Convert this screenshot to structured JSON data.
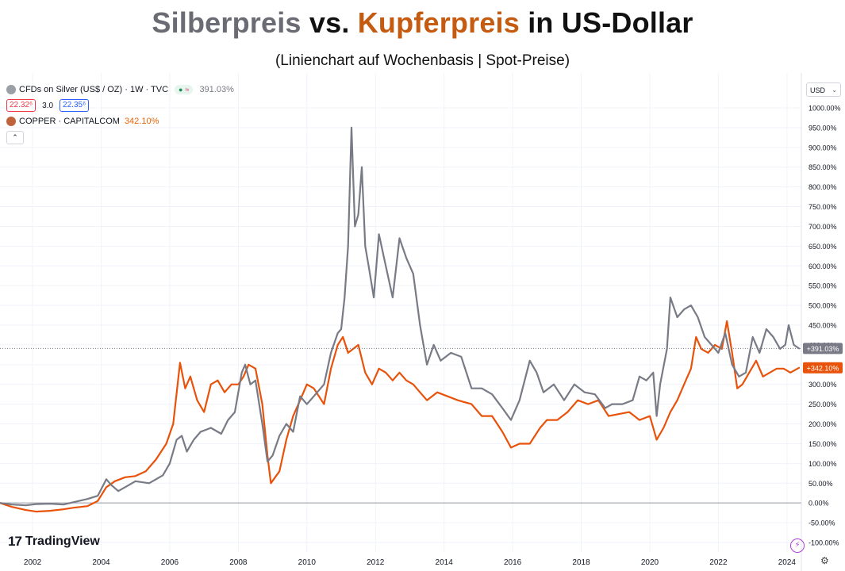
{
  "header": {
    "title_silver": "Silberpreis",
    "title_mid": "vs.",
    "title_copper": "Kupferpreis",
    "title_end": "in US-Dollar",
    "subtitle": "(Linienchart auf Wochenbasis | Spot-Preise)"
  },
  "legend": {
    "silver_label": "CFDs on Silver (US$ / OZ) · 1W · TVC",
    "silver_pct": "391.03%",
    "pill_icon": "●",
    "pill_alt": "≈",
    "bid": "22.32⁶",
    "spread": "3.0",
    "ask": "22.35⁶",
    "copper_label": "COPPER · CAPITALCOM",
    "copper_pct": "342.10%",
    "collapse": "⌃"
  },
  "toolbar": {
    "currency": "USD",
    "currency_chevron": "⌄"
  },
  "brand": {
    "logo": "17",
    "name": "TradingView"
  },
  "icons": {
    "bolt": "⚡",
    "gear": "⚙"
  },
  "colors": {
    "silver": "#787b86",
    "copper": "#e8520a",
    "grid": "#f0f3fa"
  },
  "chart_data": {
    "type": "line",
    "title": "Silberpreis vs. Kupferpreis in US-Dollar",
    "subtitle": "(Linienchart auf Wochenbasis | Spot-Preise)",
    "ylim": [
      -100,
      1000
    ],
    "xlim": [
      2001.05,
      2024.35
    ],
    "grid": true,
    "legend": "top-left",
    "y_ticks": [
      "1000.00%",
      "950.00%",
      "900.00%",
      "850.00%",
      "800.00%",
      "750.00%",
      "700.00%",
      "650.00%",
      "600.00%",
      "550.00%",
      "500.00%",
      "450.00%",
      "400.00%",
      "350.00%",
      "300.00%",
      "250.00%",
      "200.00%",
      "150.00%",
      "100.00%",
      "50.00%",
      "0.00%",
      "-50.00%",
      "-100.00%"
    ],
    "x_ticks": [
      "2002",
      "2004",
      "2006",
      "2008",
      "2010",
      "2012",
      "2014",
      "2016",
      "2018",
      "2020",
      "2022",
      "2024"
    ],
    "last_labels": {
      "silver": "+391.03%",
      "copper": "+342.10%"
    },
    "series": [
      {
        "name": "CFDs on Silver (US$ / OZ)",
        "color": "#787b86",
        "points": [
          [
            2001.05,
            0
          ],
          [
            2001.4,
            -4
          ],
          [
            2001.8,
            -6
          ],
          [
            2002.1,
            -3
          ],
          [
            2002.5,
            -2
          ],
          [
            2002.9,
            -4
          ],
          [
            2003.2,
            2
          ],
          [
            2003.6,
            10
          ],
          [
            2003.9,
            18
          ],
          [
            2004.15,
            60
          ],
          [
            2004.3,
            45
          ],
          [
            2004.5,
            30
          ],
          [
            2004.8,
            45
          ],
          [
            2005.0,
            55
          ],
          [
            2005.4,
            50
          ],
          [
            2005.8,
            70
          ],
          [
            2006.0,
            100
          ],
          [
            2006.2,
            160
          ],
          [
            2006.35,
            170
          ],
          [
            2006.5,
            130
          ],
          [
            2006.7,
            160
          ],
          [
            2006.9,
            180
          ],
          [
            2007.2,
            190
          ],
          [
            2007.5,
            175
          ],
          [
            2007.7,
            210
          ],
          [
            2007.9,
            230
          ],
          [
            2008.1,
            330
          ],
          [
            2008.2,
            350
          ],
          [
            2008.35,
            300
          ],
          [
            2008.5,
            310
          ],
          [
            2008.7,
            200
          ],
          [
            2008.85,
            105
          ],
          [
            2009.0,
            120
          ],
          [
            2009.2,
            170
          ],
          [
            2009.4,
            200
          ],
          [
            2009.6,
            180
          ],
          [
            2009.8,
            270
          ],
          [
            2010.0,
            250
          ],
          [
            2010.2,
            270
          ],
          [
            2010.5,
            300
          ],
          [
            2010.7,
            380
          ],
          [
            2010.9,
            430
          ],
          [
            2011.0,
            440
          ],
          [
            2011.1,
            520
          ],
          [
            2011.2,
            650
          ],
          [
            2011.3,
            950
          ],
          [
            2011.4,
            700
          ],
          [
            2011.5,
            730
          ],
          [
            2011.6,
            850
          ],
          [
            2011.7,
            650
          ],
          [
            2011.8,
            600
          ],
          [
            2011.95,
            520
          ],
          [
            2012.1,
            680
          ],
          [
            2012.3,
            600
          ],
          [
            2012.5,
            520
          ],
          [
            2012.7,
            670
          ],
          [
            2012.9,
            620
          ],
          [
            2013.1,
            580
          ],
          [
            2013.3,
            450
          ],
          [
            2013.5,
            350
          ],
          [
            2013.7,
            400
          ],
          [
            2013.9,
            360
          ],
          [
            2014.2,
            380
          ],
          [
            2014.5,
            370
          ],
          [
            2014.8,
            290
          ],
          [
            2015.1,
            290
          ],
          [
            2015.4,
            275
          ],
          [
            2015.7,
            240
          ],
          [
            2015.95,
            210
          ],
          [
            2016.2,
            260
          ],
          [
            2016.5,
            360
          ],
          [
            2016.7,
            330
          ],
          [
            2016.9,
            280
          ],
          [
            2017.2,
            300
          ],
          [
            2017.5,
            260
          ],
          [
            2017.8,
            300
          ],
          [
            2018.1,
            280
          ],
          [
            2018.4,
            275
          ],
          [
            2018.7,
            240
          ],
          [
            2018.9,
            250
          ],
          [
            2019.2,
            250
          ],
          [
            2019.5,
            260
          ],
          [
            2019.7,
            320
          ],
          [
            2019.9,
            310
          ],
          [
            2020.1,
            330
          ],
          [
            2020.2,
            220
          ],
          [
            2020.3,
            300
          ],
          [
            2020.5,
            390
          ],
          [
            2020.6,
            520
          ],
          [
            2020.8,
            470
          ],
          [
            2021.0,
            490
          ],
          [
            2021.2,
            500
          ],
          [
            2021.4,
            470
          ],
          [
            2021.6,
            420
          ],
          [
            2021.8,
            400
          ],
          [
            2022.0,
            380
          ],
          [
            2022.2,
            430
          ],
          [
            2022.4,
            350
          ],
          [
            2022.6,
            320
          ],
          [
            2022.8,
            330
          ],
          [
            2023.0,
            420
          ],
          [
            2023.2,
            380
          ],
          [
            2023.4,
            440
          ],
          [
            2023.6,
            420
          ],
          [
            2023.8,
            390
          ],
          [
            2023.95,
            400
          ],
          [
            2024.05,
            450
          ],
          [
            2024.2,
            400
          ],
          [
            2024.35,
            391
          ]
        ]
      },
      {
        "name": "COPPER · CAPITALCOM",
        "color": "#e8520a",
        "points": [
          [
            2001.05,
            0
          ],
          [
            2001.4,
            -10
          ],
          [
            2001.8,
            -18
          ],
          [
            2002.1,
            -22
          ],
          [
            2002.5,
            -20
          ],
          [
            2002.9,
            -16
          ],
          [
            2003.2,
            -12
          ],
          [
            2003.6,
            -8
          ],
          [
            2003.9,
            5
          ],
          [
            2004.15,
            40
          ],
          [
            2004.4,
            55
          ],
          [
            2004.7,
            65
          ],
          [
            2005.0,
            68
          ],
          [
            2005.3,
            80
          ],
          [
            2005.6,
            110
          ],
          [
            2005.9,
            150
          ],
          [
            2006.1,
            200
          ],
          [
            2006.3,
            355
          ],
          [
            2006.45,
            290
          ],
          [
            2006.6,
            320
          ],
          [
            2006.8,
            260
          ],
          [
            2007.0,
            230
          ],
          [
            2007.2,
            300
          ],
          [
            2007.4,
            310
          ],
          [
            2007.6,
            280
          ],
          [
            2007.8,
            300
          ],
          [
            2008.0,
            300
          ],
          [
            2008.15,
            320
          ],
          [
            2008.3,
            350
          ],
          [
            2008.5,
            340
          ],
          [
            2008.7,
            250
          ],
          [
            2008.85,
            120
          ],
          [
            2008.95,
            50
          ],
          [
            2009.2,
            80
          ],
          [
            2009.4,
            160
          ],
          [
            2009.6,
            220
          ],
          [
            2009.8,
            260
          ],
          [
            2010.0,
            300
          ],
          [
            2010.2,
            290
          ],
          [
            2010.5,
            250
          ],
          [
            2010.7,
            340
          ],
          [
            2010.9,
            400
          ],
          [
            2011.05,
            420
          ],
          [
            2011.2,
            380
          ],
          [
            2011.5,
            400
          ],
          [
            2011.7,
            330
          ],
          [
            2011.9,
            300
          ],
          [
            2012.1,
            340
          ],
          [
            2012.3,
            330
          ],
          [
            2012.5,
            310
          ],
          [
            2012.7,
            330
          ],
          [
            2012.9,
            310
          ],
          [
            2013.1,
            300
          ],
          [
            2013.3,
            280
          ],
          [
            2013.5,
            260
          ],
          [
            2013.8,
            280
          ],
          [
            2014.1,
            270
          ],
          [
            2014.4,
            260
          ],
          [
            2014.8,
            250
          ],
          [
            2015.1,
            220
          ],
          [
            2015.4,
            220
          ],
          [
            2015.7,
            180
          ],
          [
            2015.95,
            140
          ],
          [
            2016.2,
            150
          ],
          [
            2016.5,
            150
          ],
          [
            2016.8,
            190
          ],
          [
            2017.0,
            210
          ],
          [
            2017.3,
            210
          ],
          [
            2017.6,
            230
          ],
          [
            2017.9,
            260
          ],
          [
            2018.2,
            250
          ],
          [
            2018.5,
            260
          ],
          [
            2018.8,
            220
          ],
          [
            2019.1,
            225
          ],
          [
            2019.4,
            230
          ],
          [
            2019.7,
            210
          ],
          [
            2020.0,
            220
          ],
          [
            2020.2,
            160
          ],
          [
            2020.4,
            190
          ],
          [
            2020.6,
            230
          ],
          [
            2020.8,
            260
          ],
          [
            2021.0,
            300
          ],
          [
            2021.2,
            340
          ],
          [
            2021.35,
            420
          ],
          [
            2021.5,
            390
          ],
          [
            2021.7,
            380
          ],
          [
            2021.9,
            400
          ],
          [
            2022.1,
            390
          ],
          [
            2022.25,
            460
          ],
          [
            2022.4,
            380
          ],
          [
            2022.55,
            290
          ],
          [
            2022.7,
            300
          ],
          [
            2022.9,
            330
          ],
          [
            2023.1,
            360
          ],
          [
            2023.3,
            320
          ],
          [
            2023.5,
            330
          ],
          [
            2023.7,
            340
          ],
          [
            2023.9,
            340
          ],
          [
            2024.1,
            330
          ],
          [
            2024.35,
            342
          ]
        ]
      }
    ]
  }
}
